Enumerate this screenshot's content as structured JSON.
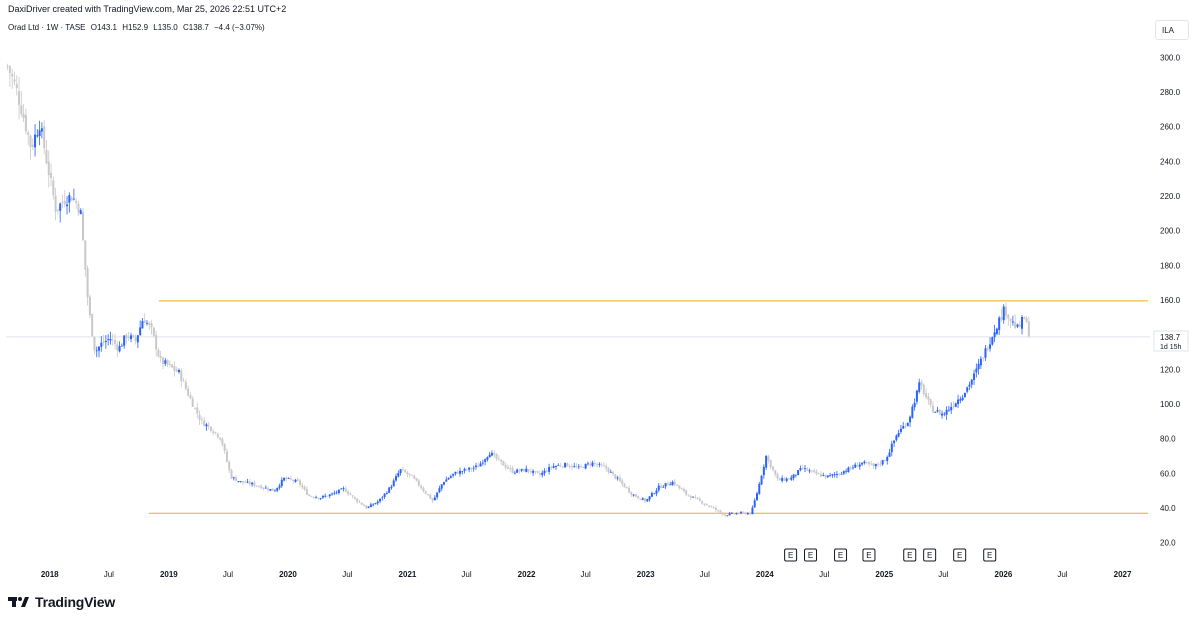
{
  "caption": "DaxiDriver created with TradingView.com, Mar 25, 2026 22:51 UTC+2",
  "symbol": {
    "name": "Orad Ltd · 1W · TASE",
    "open": "O143.1",
    "high": "H152.9",
    "low": "L135.0",
    "close": "C138.7",
    "change": "−4.4 (−3.07%)"
  },
  "currency_button": "ILA",
  "last_price_label": "138.7",
  "countdown_label": "1d 15h",
  "footer": {
    "brand": "TradingView"
  },
  "colors": {
    "up": "#2962ff",
    "down": "#c8c8c8",
    "level_line": "#f5a623",
    "last_price_line": "#dfe3ec"
  },
  "chart_data": {
    "type": "candlestick",
    "title": "Orad Ltd · 1W · TASE",
    "ylim": [
      10,
      310
    ],
    "y_ticks": [
      20.0,
      40.0,
      60.0,
      80.0,
      100.0,
      120.0,
      140.0,
      160.0,
      180.0,
      200.0,
      220.0,
      240.0,
      260.0,
      280.0,
      300.0
    ],
    "x_range": [
      "2017-08-20",
      "2027-03-20"
    ],
    "time_ticks": [
      {
        "date": "2018-01-01",
        "label": "2018",
        "major": true
      },
      {
        "date": "2018-07-01",
        "label": "Jul",
        "major": false
      },
      {
        "date": "2019-01-01",
        "label": "2019",
        "major": true
      },
      {
        "date": "2019-07-01",
        "label": "Jul",
        "major": false
      },
      {
        "date": "2020-01-01",
        "label": "2020",
        "major": true
      },
      {
        "date": "2020-07-01",
        "label": "Jul",
        "major": false
      },
      {
        "date": "2021-01-01",
        "label": "2021",
        "major": true
      },
      {
        "date": "2021-07-01",
        "label": "Jul",
        "major": false
      },
      {
        "date": "2022-01-01",
        "label": "2022",
        "major": true
      },
      {
        "date": "2022-07-01",
        "label": "Jul",
        "major": false
      },
      {
        "date": "2023-01-01",
        "label": "2023",
        "major": true
      },
      {
        "date": "2023-07-01",
        "label": "Jul",
        "major": false
      },
      {
        "date": "2024-01-01",
        "label": "2024",
        "major": true
      },
      {
        "date": "2024-07-01",
        "label": "Jul",
        "major": false
      },
      {
        "date": "2025-01-01",
        "label": "2025",
        "major": true
      },
      {
        "date": "2025-07-01",
        "label": "Jul",
        "major": false
      },
      {
        "date": "2026-01-01",
        "label": "2026",
        "major": true
      },
      {
        "date": "2026-07-01",
        "label": "Jul",
        "major": false
      },
      {
        "date": "2027-01-01",
        "label": "2027",
        "major": true
      }
    ],
    "horizontal_levels": [
      {
        "price": 159.5,
        "from": "2018-12-01",
        "to": "2027-03-20"
      },
      {
        "price": 37.0,
        "from": "2018-11-01",
        "to": "2027-03-20"
      }
    ],
    "last_price": 138.7,
    "earnings_markers": [
      "2024-03-20",
      "2024-05-20",
      "2024-08-20",
      "2024-11-15",
      "2025-03-20",
      "2025-05-20",
      "2025-08-20",
      "2025-11-20"
    ],
    "earnings_label": "E",
    "close_path": [
      [
        "2017-08-25",
        295
      ],
      [
        "2017-09-20",
        282
      ],
      [
        "2017-10-10",
        268
      ],
      [
        "2017-11-05",
        248
      ],
      [
        "2017-12-01",
        262
      ],
      [
        "2017-12-25",
        238
      ],
      [
        "2018-01-20",
        212
      ],
      [
        "2018-02-15",
        218
      ],
      [
        "2018-03-10",
        220
      ],
      [
        "2018-04-05",
        212
      ],
      [
        "2018-04-30",
        155
      ],
      [
        "2018-05-20",
        130
      ],
      [
        "2018-06-10",
        135
      ],
      [
        "2018-07-05",
        138
      ],
      [
        "2018-08-01",
        132
      ],
      [
        "2018-08-25",
        140
      ],
      [
        "2018-09-20",
        136
      ],
      [
        "2018-10-15",
        150
      ],
      [
        "2018-11-10",
        142
      ],
      [
        "2018-12-05",
        125
      ],
      [
        "2019-01-01",
        122
      ],
      [
        "2019-02-01",
        118
      ],
      [
        "2019-03-10",
        102
      ],
      [
        "2019-04-10",
        90
      ],
      [
        "2019-05-10",
        86
      ],
      [
        "2019-06-10",
        80
      ],
      [
        "2019-07-10",
        58
      ],
      [
        "2019-08-10",
        55
      ],
      [
        "2019-09-10",
        54
      ],
      [
        "2019-10-15",
        52
      ],
      [
        "2019-11-20",
        50
      ],
      [
        "2019-12-20",
        57
      ],
      [
        "2020-02-01",
        55
      ],
      [
        "2020-03-05",
        47
      ],
      [
        "2020-04-10",
        46
      ],
      [
        "2020-05-15",
        48
      ],
      [
        "2020-06-20",
        51
      ],
      [
        "2020-07-25",
        45
      ],
      [
        "2020-08-30",
        40
      ],
      [
        "2020-10-05",
        44
      ],
      [
        "2020-11-10",
        52
      ],
      [
        "2020-12-10",
        62
      ],
      [
        "2021-01-15",
        58
      ],
      [
        "2021-02-20",
        50
      ],
      [
        "2021-03-20",
        44
      ],
      [
        "2021-04-20",
        55
      ],
      [
        "2021-05-25",
        60
      ],
      [
        "2021-06-30",
        62
      ],
      [
        "2021-08-05",
        64
      ],
      [
        "2021-09-10",
        72
      ],
      [
        "2021-10-15",
        66
      ],
      [
        "2021-11-20",
        61
      ],
      [
        "2022-01-01",
        62
      ],
      [
        "2022-02-10",
        59
      ],
      [
        "2022-03-20",
        64
      ],
      [
        "2022-05-01",
        65
      ],
      [
        "2022-06-10",
        63
      ],
      [
        "2022-07-20",
        66
      ],
      [
        "2022-09-01",
        63
      ],
      [
        "2022-10-10",
        56
      ],
      [
        "2022-11-20",
        48
      ],
      [
        "2023-01-01",
        44
      ],
      [
        "2023-02-10",
        52
      ],
      [
        "2023-03-25",
        55
      ],
      [
        "2023-05-05",
        48
      ],
      [
        "2023-06-15",
        44
      ],
      [
        "2023-07-25",
        40
      ],
      [
        "2023-09-01",
        36
      ],
      [
        "2023-10-10",
        37
      ],
      [
        "2023-11-20",
        37
      ],
      [
        "2023-12-10",
        50
      ],
      [
        "2024-01-05",
        70
      ],
      [
        "2024-02-10",
        56
      ],
      [
        "2024-03-20",
        57
      ],
      [
        "2024-04-25",
        63
      ],
      [
        "2024-06-01",
        60
      ],
      [
        "2024-07-10",
        58
      ],
      [
        "2024-08-15",
        60
      ],
      [
        "2024-09-20",
        63
      ],
      [
        "2024-10-25",
        66
      ],
      [
        "2024-12-01",
        64
      ],
      [
        "2025-01-05",
        68
      ],
      [
        "2025-02-10",
        83
      ],
      [
        "2025-03-15",
        90
      ],
      [
        "2025-04-20",
        112
      ],
      [
        "2025-05-25",
        97
      ],
      [
        "2025-06-30",
        94
      ],
      [
        "2025-08-01",
        100
      ],
      [
        "2025-09-01",
        106
      ],
      [
        "2025-10-05",
        117
      ],
      [
        "2025-11-10",
        132
      ],
      [
        "2025-12-10",
        145
      ],
      [
        "2026-01-05",
        155
      ],
      [
        "2026-01-25",
        148
      ],
      [
        "2026-02-15",
        143
      ],
      [
        "2026-03-05",
        150
      ],
      [
        "2026-03-25",
        138.7
      ]
    ]
  }
}
